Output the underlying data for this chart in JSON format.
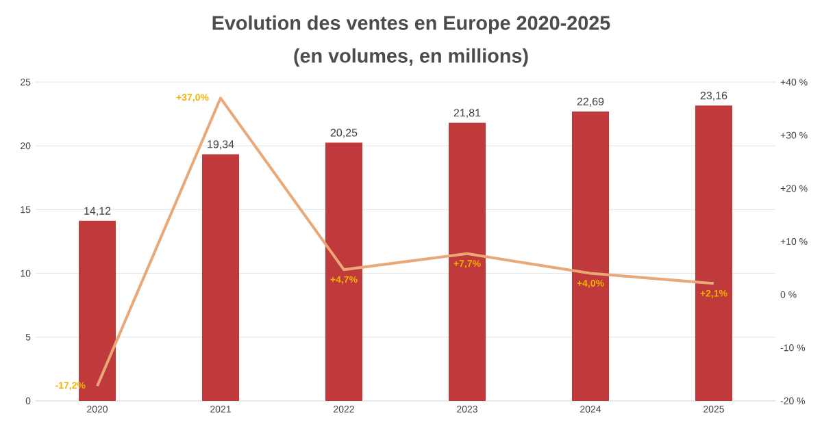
{
  "chart_data": {
    "type": "bar",
    "title": "Evolution des ventes en Europe 2020-2025",
    "subtitle": "(en volumes, en millions)",
    "categories": [
      "2020",
      "2021",
      "2022",
      "2023",
      "2024",
      "2025"
    ],
    "series": [
      {
        "color": "#c0393b",
        "values": [
          14.12,
          19.34,
          20.25,
          21.81,
          22.69,
          23.16
        ],
        "value_labels": [
          "14,12",
          "19,34",
          "20,25",
          "21,81",
          "22,69",
          "23,16"
        ]
      },
      {
        "type": "line",
        "axis": "y2",
        "color": "#e9a878",
        "values": [
          -17.2,
          37.0,
          4.7,
          7.7,
          4.0,
          2.1
        ],
        "value_labels": [
          "-17,2%",
          "+37,0%",
          "+4,7%",
          "+7,7%",
          "+4,0%",
          "+2,1%"
        ]
      }
    ],
    "ylim": [
      0,
      25
    ],
    "yticks": [
      0,
      5,
      10,
      15,
      20,
      25
    ],
    "y2lim": [
      -20,
      40
    ],
    "y2ticks": [
      {
        "value": -20,
        "label": "-20 %"
      },
      {
        "value": -10,
        "label": "-10 %"
      },
      {
        "value": 0,
        "label": "0 %"
      },
      {
        "value": 10,
        "label": "+10 %"
      },
      {
        "value": 20,
        "label": "+20 %"
      },
      {
        "value": 30,
        "label": "+30 %"
      },
      {
        "value": 40,
        "label": "+40 %"
      }
    ],
    "grid": "y"
  }
}
